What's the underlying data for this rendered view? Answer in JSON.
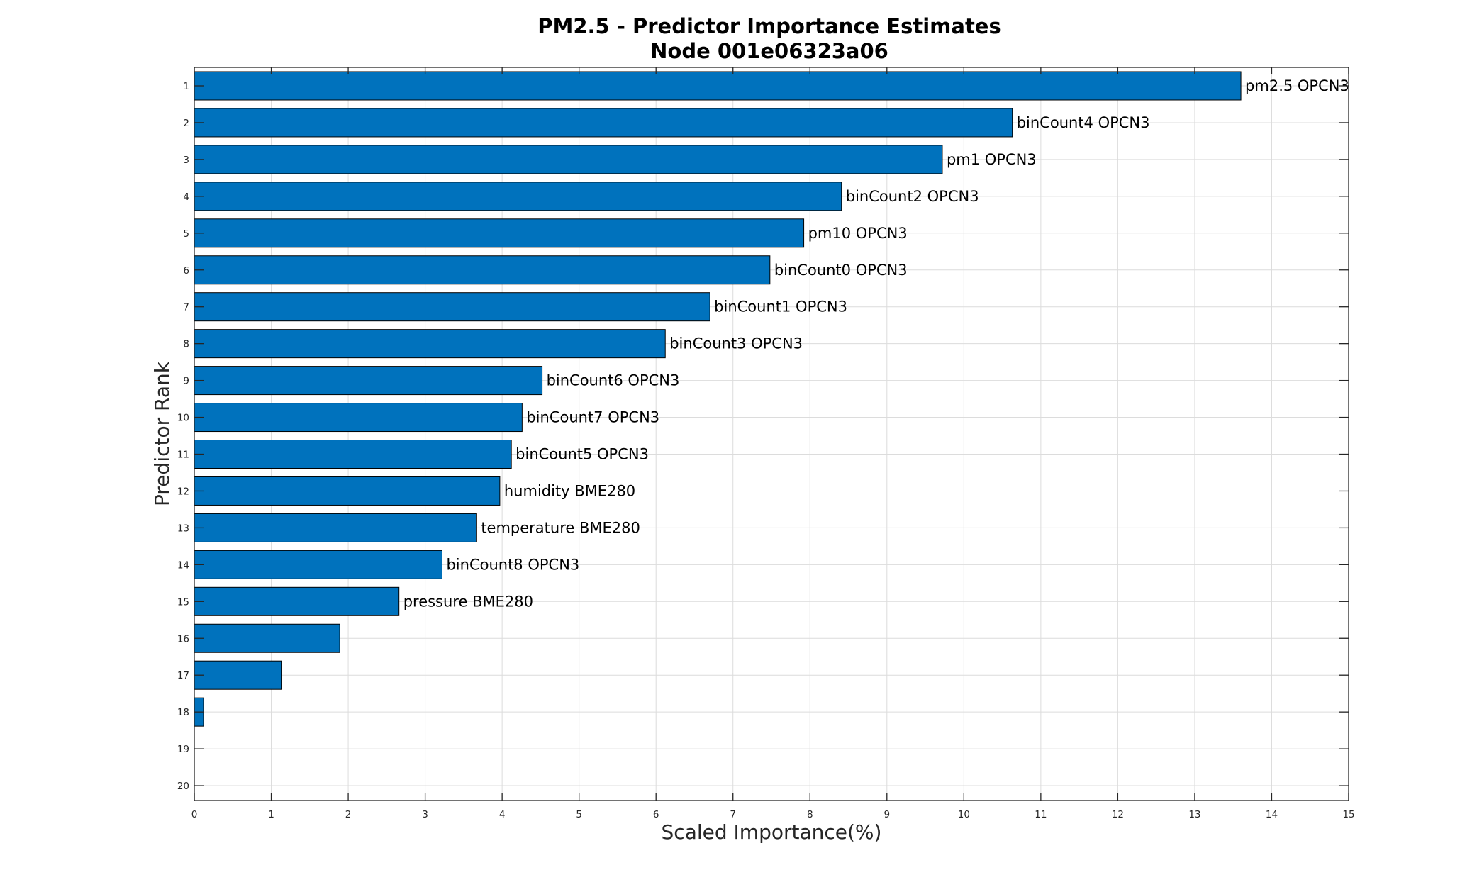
{
  "chart_data": {
    "type": "bar",
    "orientation": "horizontal",
    "title": [
      "PM2.5 - Predictor Importance Estimates",
      "Node 001e06323a06"
    ],
    "xlabel": "Scaled Importance(%)",
    "ylabel": "Predictor Rank",
    "xlim": [
      0,
      15
    ],
    "ylim": [
      1,
      20
    ],
    "xticks": [
      "0",
      "1",
      "2",
      "3",
      "4",
      "5",
      "6",
      "7",
      "8",
      "9",
      "10",
      "11",
      "12",
      "13",
      "14",
      "15"
    ],
    "yticks": [
      "1",
      "2",
      "3",
      "4",
      "5",
      "6",
      "7",
      "8",
      "9",
      "10",
      "11",
      "12",
      "13",
      "14",
      "15",
      "16",
      "17",
      "18",
      "19",
      "20"
    ],
    "grid": true,
    "bar_color": "#0072bd",
    "bars": [
      {
        "rank": 1,
        "value": 13.6,
        "label": "pm2.5 OPCN3"
      },
      {
        "rank": 2,
        "value": 10.63,
        "label": "binCount4 OPCN3"
      },
      {
        "rank": 3,
        "value": 9.72,
        "label": "pm1 OPCN3"
      },
      {
        "rank": 4,
        "value": 8.41,
        "label": "binCount2 OPCN3"
      },
      {
        "rank": 5,
        "value": 7.92,
        "label": "pm10 OPCN3"
      },
      {
        "rank": 6,
        "value": 7.48,
        "label": "binCount0 OPCN3"
      },
      {
        "rank": 7,
        "value": 6.7,
        "label": "binCount1 OPCN3"
      },
      {
        "rank": 8,
        "value": 6.12,
        "label": "binCount3 OPCN3"
      },
      {
        "rank": 9,
        "value": 4.52,
        "label": "binCount6 OPCN3"
      },
      {
        "rank": 10,
        "value": 4.26,
        "label": "binCount7 OPCN3"
      },
      {
        "rank": 11,
        "value": 4.12,
        "label": "binCount5 OPCN3"
      },
      {
        "rank": 12,
        "value": 3.97,
        "label": "humidity BME280"
      },
      {
        "rank": 13,
        "value": 3.67,
        "label": "temperature BME280"
      },
      {
        "rank": 14,
        "value": 3.22,
        "label": "binCount8 OPCN3"
      },
      {
        "rank": 15,
        "value": 2.66,
        "label": "pressure BME280"
      },
      {
        "rank": 16,
        "value": 1.89,
        "label": ""
      },
      {
        "rank": 17,
        "value": 1.13,
        "label": ""
      },
      {
        "rank": 18,
        "value": 0.12,
        "label": ""
      },
      {
        "rank": 19,
        "value": 0,
        "label": ""
      },
      {
        "rank": 20,
        "value": 0,
        "label": ""
      }
    ]
  }
}
